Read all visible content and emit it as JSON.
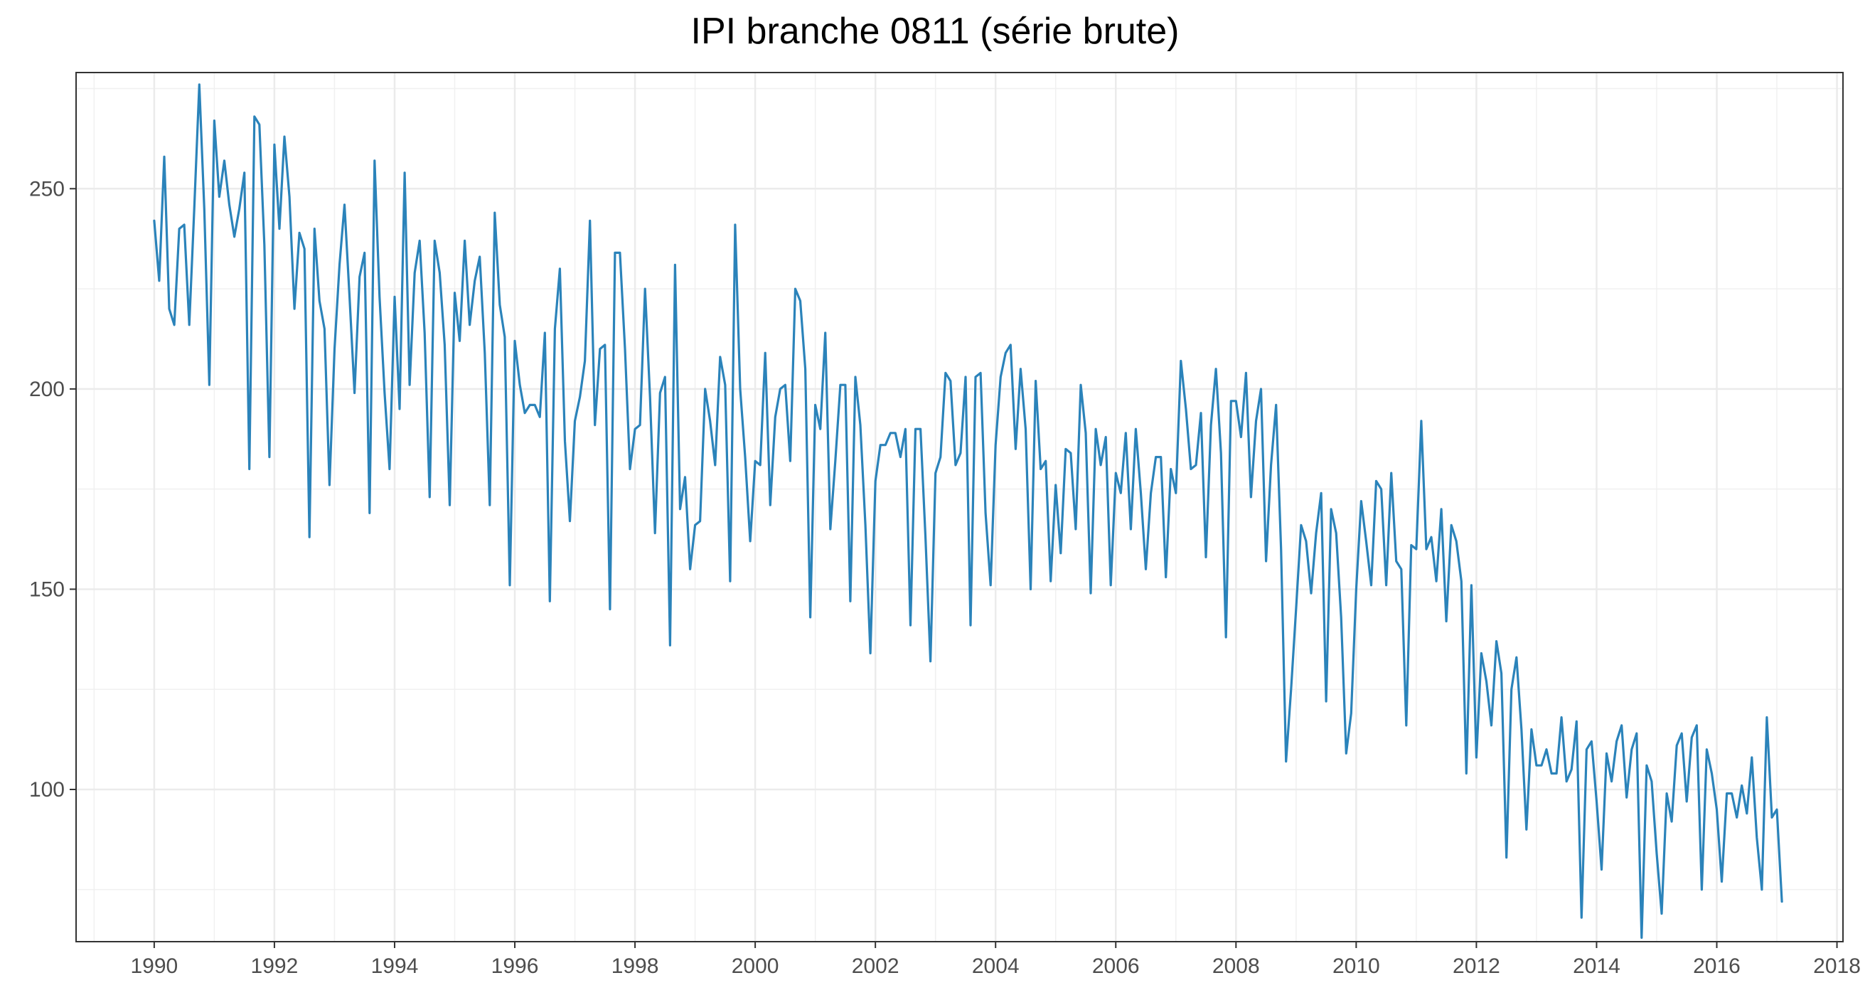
{
  "chart_data": {
    "type": "line",
    "title": "IPI branche 0811 (série brute)",
    "xlabel": "",
    "ylabel": "",
    "xlim": [
      1988.7,
      2018.1
    ],
    "ylim": [
      62,
      279
    ],
    "x_ticks": [
      1990,
      1992,
      1994,
      1996,
      1998,
      2000,
      2002,
      2004,
      2006,
      2008,
      2010,
      2012,
      2014,
      2016,
      2018
    ],
    "x_tick_labels": [
      "1990",
      "1992",
      "1994",
      "1996",
      "1998",
      "2000",
      "2002",
      "2004",
      "2006",
      "2008",
      "2010",
      "2012",
      "2014",
      "2016",
      "2018"
    ],
    "y_ticks": [
      100,
      150,
      200,
      250
    ],
    "y_tick_labels": [
      "100",
      "150",
      "200",
      "250"
    ],
    "grid": true,
    "legend": "none",
    "series": [
      {
        "color": "#2b83ba",
        "x_start": 1990.0,
        "frequency": "monthly",
        "values": [
          242,
          227,
          258,
          220,
          216,
          240,
          241,
          216,
          245,
          276,
          245,
          201,
          267,
          248,
          257,
          246,
          238,
          245,
          254,
          180,
          268,
          266,
          236,
          183,
          261,
          240,
          263,
          248,
          220,
          239,
          235,
          163,
          240,
          222,
          215,
          176,
          210,
          231,
          246,
          223,
          199,
          228,
          234,
          169,
          257,
          223,
          199,
          180,
          223,
          195,
          254,
          201,
          229,
          237,
          214,
          173,
          237,
          229,
          211,
          171,
          224,
          212,
          237,
          216,
          227,
          233,
          209,
          171,
          244,
          221,
          213,
          151,
          212,
          201,
          194,
          196,
          196,
          193,
          214,
          147,
          215,
          230,
          187,
          167,
          192,
          198,
          207,
          242,
          191,
          210,
          211,
          145,
          234,
          234,
          210,
          180,
          190,
          191,
          225,
          198,
          164,
          199,
          203,
          136,
          231,
          170,
          178,
          155,
          166,
          167,
          200,
          192,
          181,
          208,
          201,
          152,
          241,
          200,
          183,
          162,
          182,
          181,
          209,
          171,
          193,
          200,
          201,
          182,
          225,
          222,
          205,
          143,
          196,
          190,
          214,
          165,
          182,
          201,
          201,
          147,
          203,
          191,
          166,
          134,
          177,
          186,
          186,
          189,
          189,
          183,
          190,
          141,
          190,
          190,
          163,
          132,
          179,
          183,
          204,
          202,
          181,
          184,
          203,
          141,
          203,
          204,
          169,
          151,
          186,
          203,
          209,
          211,
          185,
          205,
          190,
          150,
          202,
          180,
          182,
          152,
          176,
          159,
          185,
          184,
          165,
          201,
          189,
          149,
          190,
          181,
          188,
          151,
          179,
          174,
          189,
          165,
          190,
          174,
          155,
          174,
          183,
          183,
          153,
          180,
          174,
          207,
          195,
          180,
          181,
          194,
          158,
          191,
          205,
          184,
          138,
          197,
          197,
          188,
          204,
          173,
          192,
          200,
          157,
          181,
          196,
          160,
          107,
          125,
          145,
          166,
          162,
          149,
          164,
          174,
          122,
          170,
          164,
          143,
          109,
          119,
          150,
          172,
          162,
          151,
          177,
          175,
          151,
          179,
          157,
          155,
          116,
          161,
          160,
          192,
          160,
          163,
          152,
          170,
          142,
          166,
          162,
          152,
          104,
          151,
          108,
          134,
          127,
          116,
          137,
          129,
          83,
          125,
          133,
          115,
          90,
          115,
          106,
          106,
          110,
          104,
          104,
          118,
          102,
          105,
          117,
          68,
          110,
          112,
          97,
          80,
          109,
          102,
          112,
          116,
          98,
          110,
          114,
          63,
          106,
          102,
          84,
          69,
          99,
          92,
          111,
          114,
          97,
          113,
          116,
          75,
          110,
          104,
          95,
          77,
          99,
          99,
          93,
          101,
          94,
          108,
          88,
          75,
          118,
          93,
          95,
          72
        ]
      }
    ]
  }
}
